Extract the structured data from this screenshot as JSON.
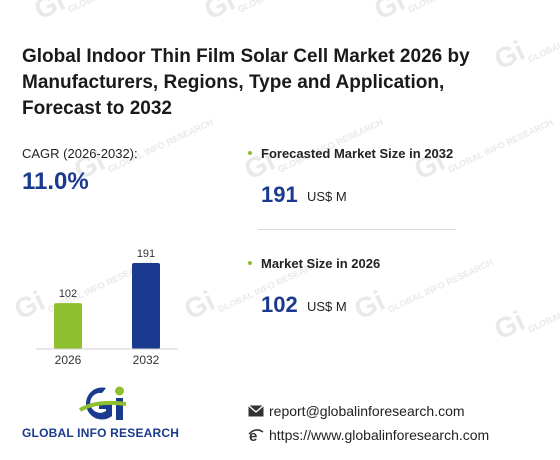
{
  "title": "Global Indoor Thin Film Solar Cell Market 2026 by Manufacturers, Regions, Type and Application, Forecast to 2032",
  "cagr": {
    "label": "CAGR (2026-2032):",
    "value": "11.0%"
  },
  "metrics": [
    {
      "label": "Forecasted Market Size in 2032",
      "value": "191",
      "unit": "US$ M"
    },
    {
      "label": "Market Size in 2026",
      "value": "102",
      "unit": "US$ M"
    }
  ],
  "chart_data": {
    "type": "bar",
    "categories": [
      "2026",
      "2032"
    ],
    "values": [
      102,
      191
    ],
    "colors": [
      "#8dbf2e",
      "#1a3a8f"
    ],
    "title": "",
    "xlabel": "",
    "ylabel": "",
    "ylim": [
      0,
      191
    ]
  },
  "logo": {
    "text": "GLOBAL INFO RESEARCH"
  },
  "contact": {
    "email": "report@globalinforesearch.com",
    "website": "https://www.globalinforesearch.com"
  },
  "icons": {
    "email": "envelope-icon",
    "website": "browser-e-icon"
  },
  "colors": {
    "accent_blue": "#1a3a8f",
    "accent_green": "#8dbf2e"
  }
}
